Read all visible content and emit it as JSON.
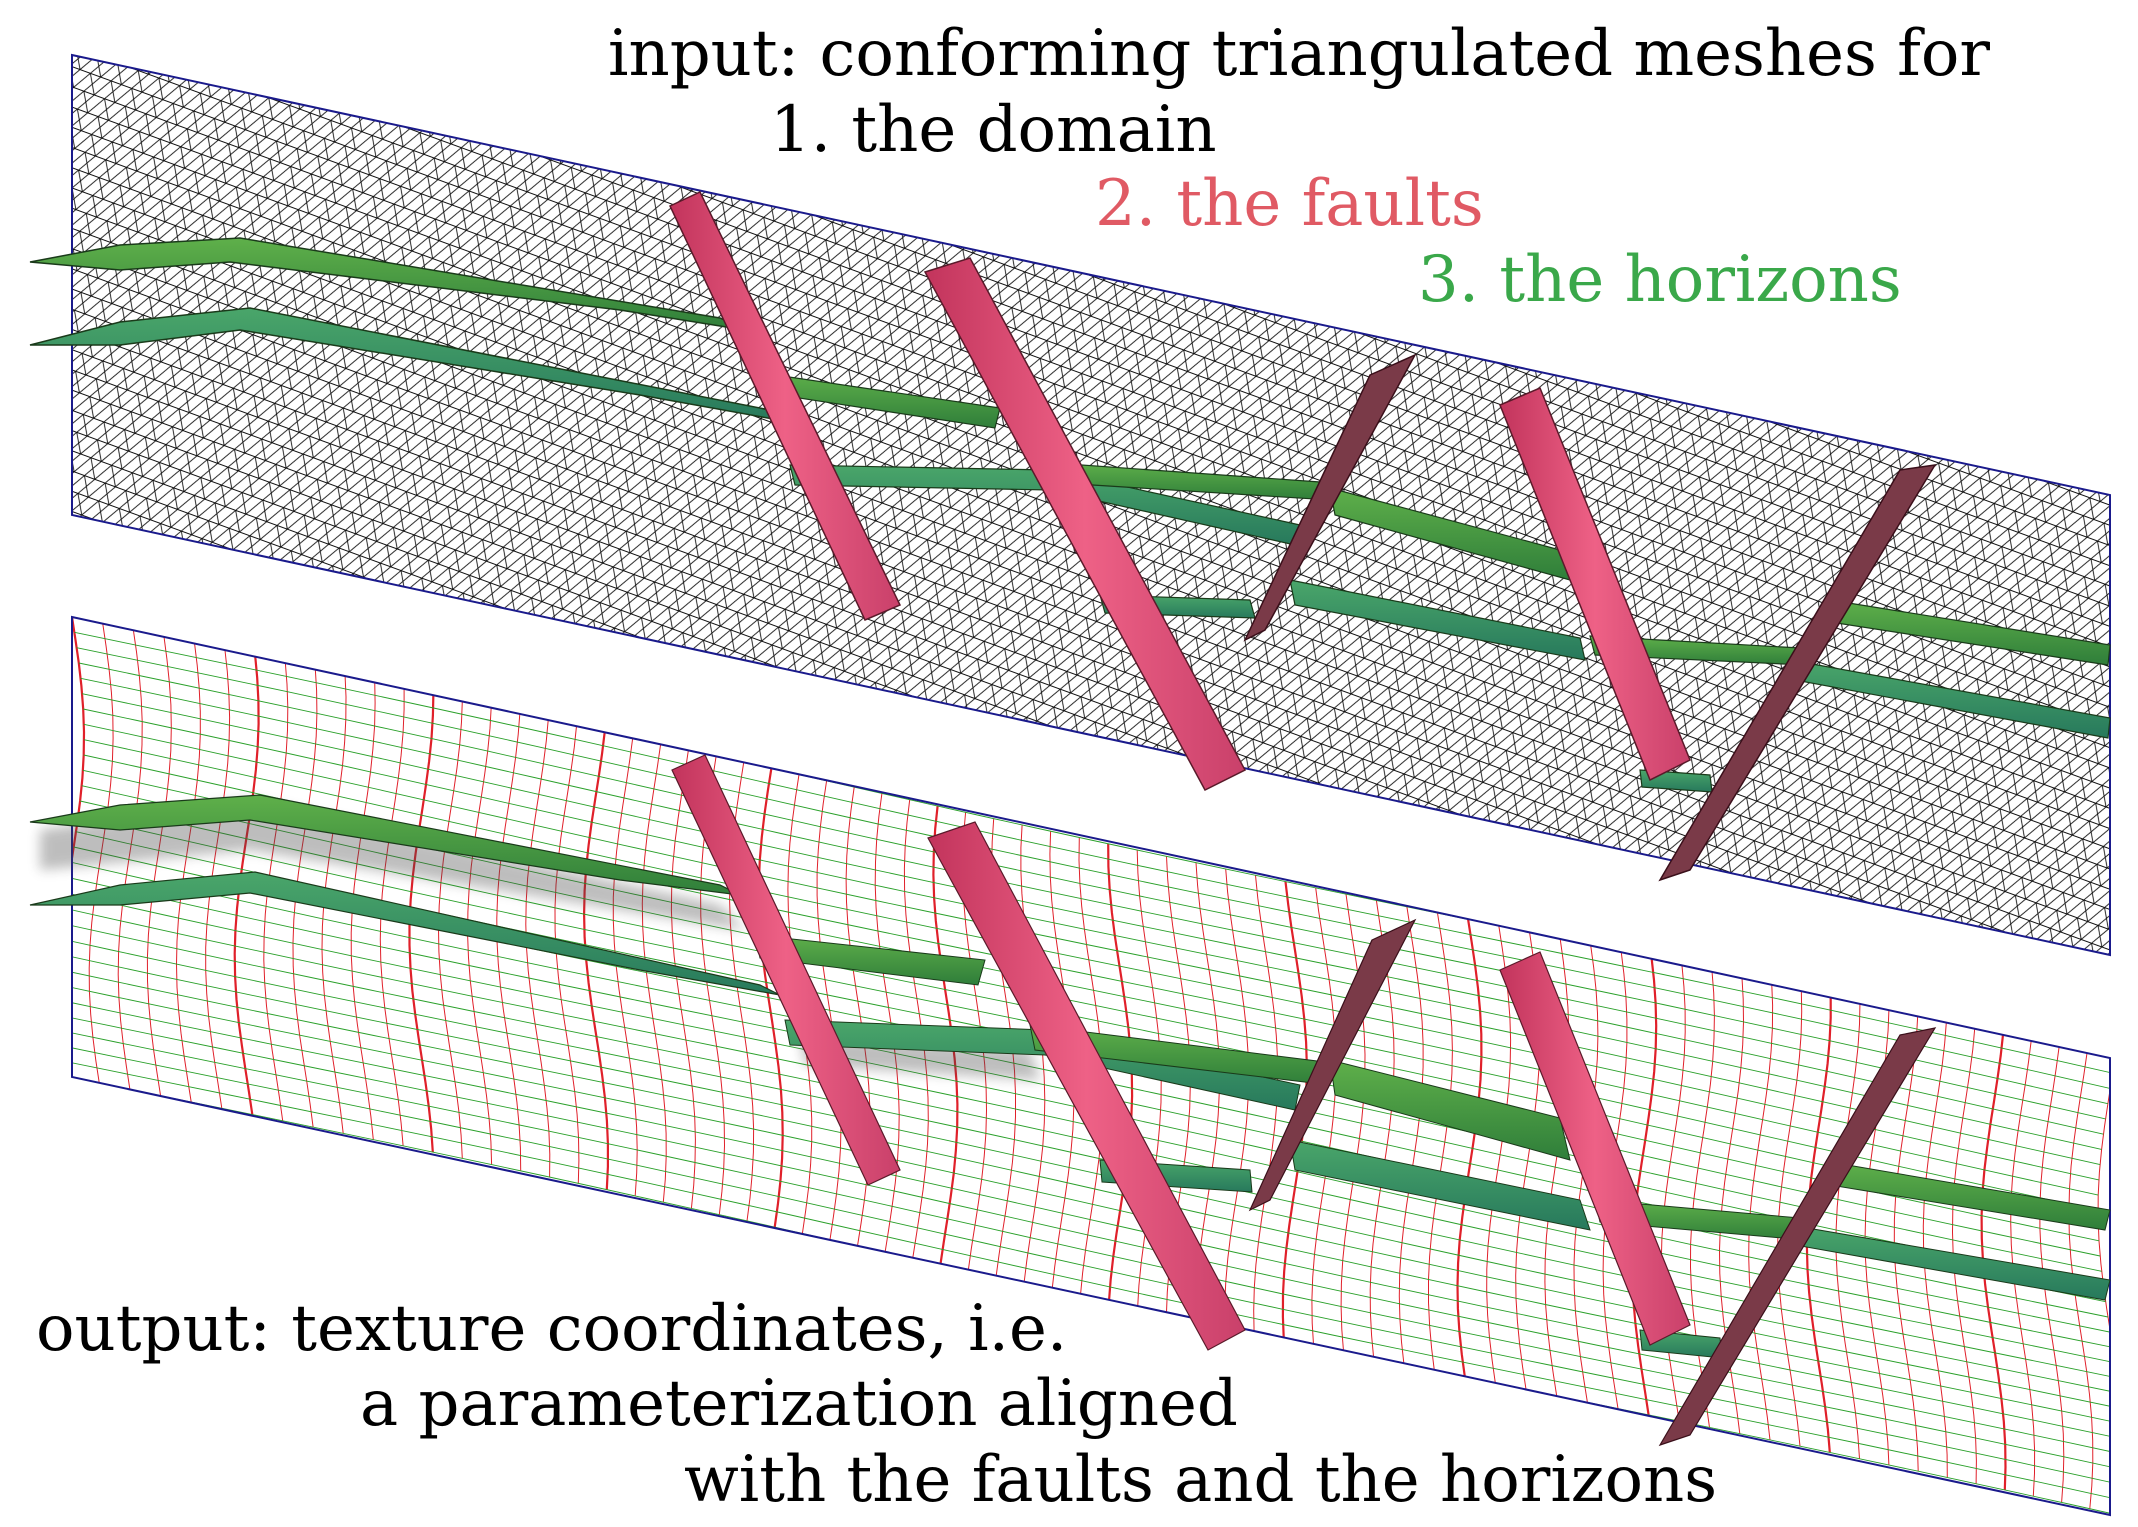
{
  "colors": {
    "background": "#ffffff",
    "mesh_line": "#111111",
    "boundary": "#1a1a8c",
    "fault_fill": "#e8557a",
    "fault_dark": "#6e3040",
    "horizon_fill": "#3c9a3c",
    "horizon_teal": "#2f8f6a",
    "grid_red": "#e0202a",
    "grid_green": "#2aa02a",
    "caption_black": "#000000",
    "caption_red": "#e05a64",
    "caption_green": "#3aa84a"
  },
  "input_caption": {
    "line1": "input: conforming triangulated meshes for",
    "item1": "1. the domain",
    "item2": "2. the faults",
    "item3": "3. the horizons"
  },
  "output_caption": {
    "line1": "output: texture coordinates, i.e.",
    "line2": "a parameterization aligned",
    "line3": "with the faults and the horizons"
  },
  "panels": [
    {
      "name": "input-mesh-panel",
      "style": "triangulated-mesh"
    },
    {
      "name": "output-texture-panel",
      "style": "texture-grid"
    }
  ]
}
